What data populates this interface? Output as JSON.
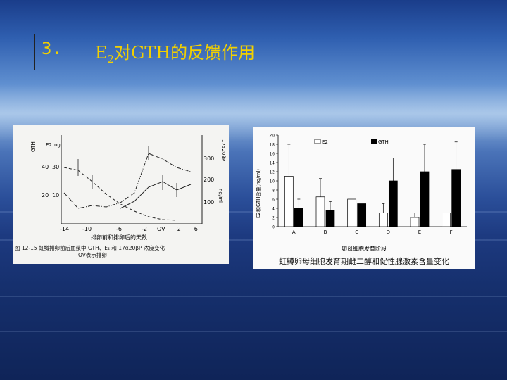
{
  "slide": {
    "number": "3.",
    "title_prefix": "E",
    "title_sub": "2",
    "title_rest": "对GTH的反馈作用"
  },
  "left_figure": {
    "y_left_ticks": [
      "40",
      "30",
      "20"
    ],
    "y_left_ticks_inner": [
      "30",
      "20",
      "10"
    ],
    "y_right_ticks": [
      "300",
      "200",
      "100"
    ],
    "y_right_unit": "ng/ml",
    "y_right_label": "17α20βP",
    "y_left_labels": [
      "GTH",
      "E2",
      "ng"
    ],
    "x_ticks": [
      "-14",
      "-10",
      "-6",
      "-2",
      "OV",
      "+2",
      "+6"
    ],
    "x_label": "排卵前和排卵后的天数",
    "caption_line1": "图 12-15  虹鳟排卵前后血浆中 GTH、E₂ 和 17α20βP 浓度变化",
    "caption_line2": "OV表示排卵"
  },
  "chart_data": {
    "type": "bar",
    "categories": [
      "A",
      "B",
      "C",
      "D",
      "E",
      "F"
    ],
    "series": [
      {
        "name": "E2",
        "values": [
          11,
          6.5,
          6,
          3,
          2,
          3
        ],
        "errors": [
          7,
          4,
          0,
          2,
          1,
          0
        ],
        "color": "#ffffff"
      },
      {
        "name": "GTH",
        "values": [
          4,
          3.5,
          5,
          10,
          12,
          12.5
        ],
        "errors": [
          2,
          2,
          0,
          5,
          6,
          6
        ],
        "color": "#000000"
      }
    ],
    "ylim": [
      0,
      20
    ],
    "y_ticks": [
      "20",
      "18",
      "16",
      "14",
      "12",
      "10",
      "8",
      "6",
      "4",
      "2",
      "0"
    ],
    "ylabel": "E2和GTH含量(ng/ml)",
    "xlabel": "卵母细胞发育阶段",
    "legend": [
      "E2",
      "GTH"
    ],
    "legend_position": "top",
    "title": "虹鳟卵母细胞发育期雌二醇和促性腺激素含量变化"
  },
  "colors": {
    "title": "#f2d000",
    "bar_e2": "#ffffff",
    "bar_gth": "#000000"
  }
}
